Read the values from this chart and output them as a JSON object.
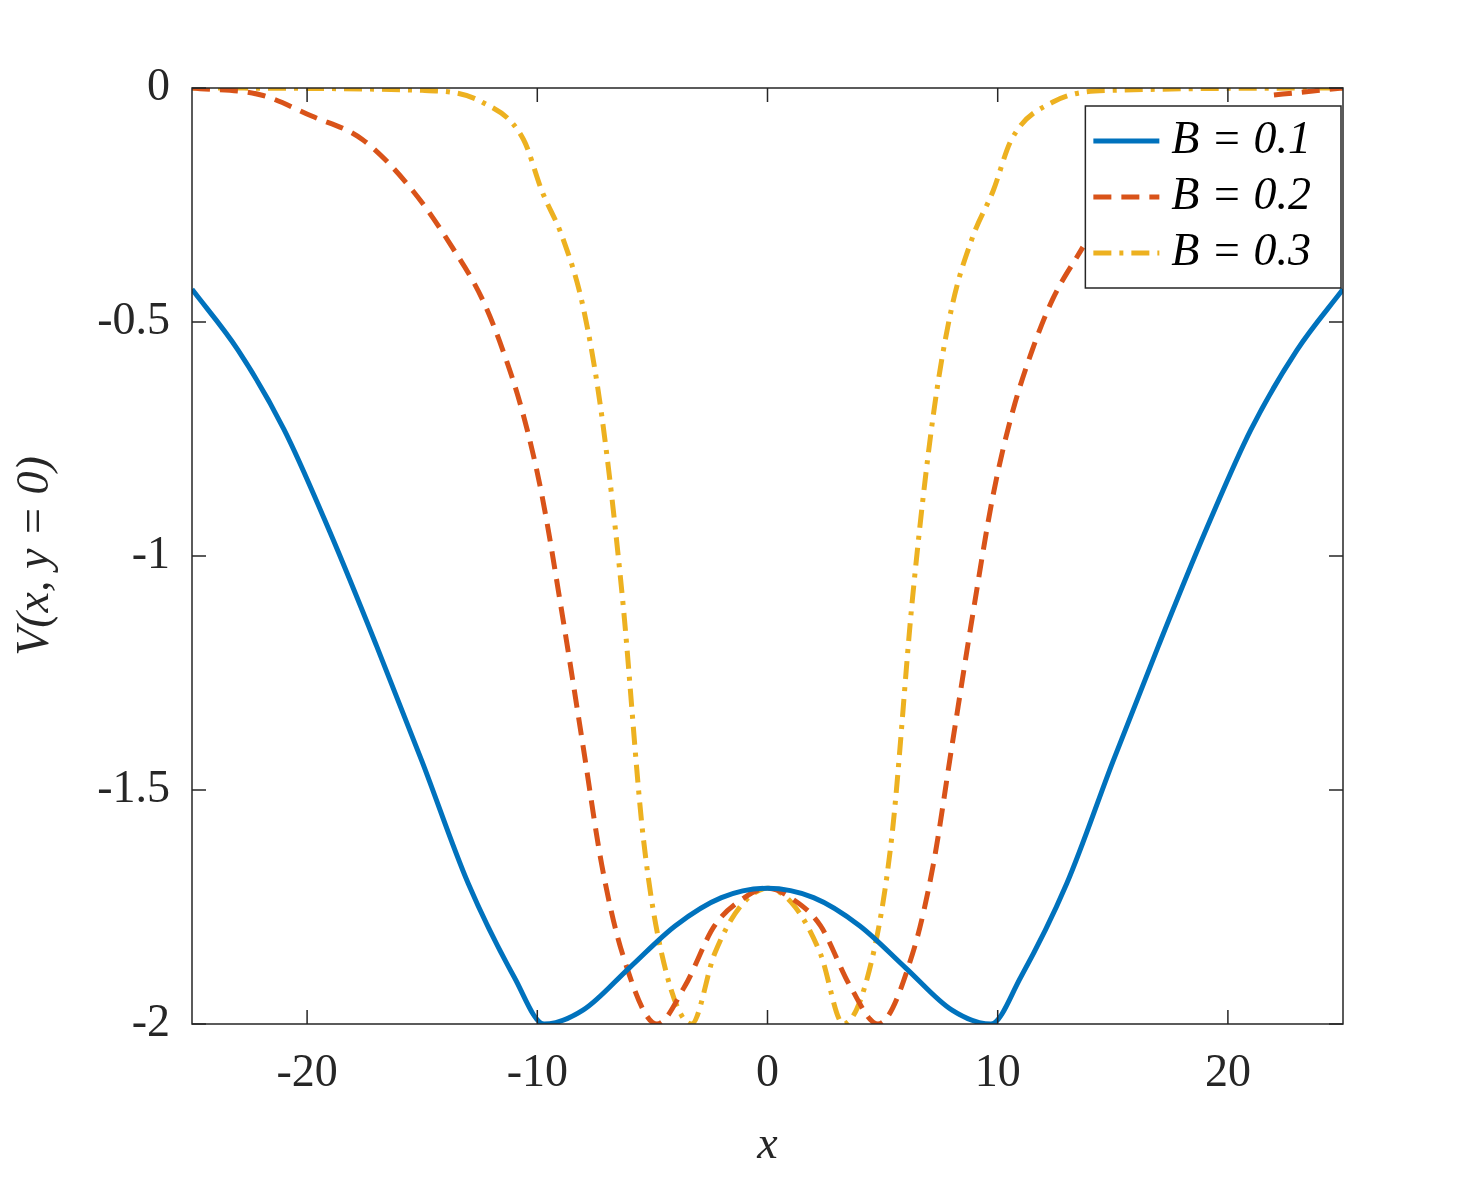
{
  "chart_data": {
    "type": "line",
    "xlabel": "x",
    "ylabel": "V(x, y = 0)",
    "xlim": [
      -25,
      25
    ],
    "xticks": [
      -20,
      -10,
      0,
      10,
      20
    ],
    "ylim": [
      -2,
      0
    ],
    "yticks": [
      -2,
      -1.5,
      -1,
      -0.5,
      0
    ],
    "grid": false,
    "legend": "top right",
    "marker": "none",
    "series": [
      {
        "name": "B = 0.1",
        "color": "#0072bd",
        "line_style": "solid",
        "x": [
          -25,
          -23,
          -21,
          -19,
          -17,
          -15,
          -13,
          -11,
          -9.7,
          -8,
          -6,
          -4,
          -2,
          0,
          2,
          4,
          6,
          8,
          9.7,
          11,
          13,
          15,
          17,
          19,
          21,
          23,
          25
        ],
        "values": [
          -0.43,
          -0.56,
          -0.73,
          -0.95,
          -1.19,
          -1.44,
          -1.7,
          -1.9,
          -2,
          -1.97,
          -1.88,
          -1.79,
          -1.73,
          -1.71,
          -1.73,
          -1.79,
          -1.88,
          -1.97,
          -2,
          -1.9,
          -1.7,
          -1.44,
          -1.19,
          -0.95,
          -0.73,
          -0.56,
          -0.43
        ]
      },
      {
        "name": "B = 0.2",
        "color": "#d95319",
        "line_style": "dashed",
        "x": [
          -25,
          -22,
          -19.8,
          -17.6,
          -15.4,
          -13.7,
          -12.4,
          -11.5,
          -10.6,
          -9.8,
          -8.9,
          -8,
          -7.2,
          -6.3,
          -4.8,
          -3.6,
          -2.3,
          -1,
          0,
          1,
          2.3,
          3.6,
          4.8,
          6.3,
          7.2,
          8,
          8.9,
          9.8,
          10.6,
          11.5,
          12.4,
          13.7,
          15.4,
          17.6,
          19.8,
          22,
          25
        ],
        "values": [
          0,
          -0.015,
          -0.06,
          -0.11,
          -0.22,
          -0.34,
          -0.45,
          -0.56,
          -0.7,
          -0.87,
          -1.13,
          -1.41,
          -1.66,
          -1.85,
          -2,
          -1.92,
          -1.79,
          -1.73,
          -1.71,
          -1.73,
          -1.79,
          -1.92,
          -2,
          -1.85,
          -1.66,
          -1.41,
          -1.13,
          -0.87,
          -0.7,
          -0.56,
          -0.45,
          -0.34,
          null,
          null,
          null,
          -0.015,
          0
        ]
      },
      {
        "name": "B = 0.3",
        "color": "#edb120",
        "line_style": "dashdot",
        "x": [
          -25,
          -15,
          -12.4,
          -10.6,
          -9.8,
          -8.9,
          -8,
          -7.2,
          -6.3,
          -5.4,
          -4.5,
          -3.3,
          -2.3,
          -1.2,
          0,
          1.2,
          2.3,
          3.3,
          4.5,
          5.4,
          6.3,
          7.2,
          8,
          8.9,
          9.8,
          10.6,
          12.4,
          15,
          25
        ],
        "values": [
          0,
          -0.005,
          -0.03,
          -0.11,
          -0.22,
          -0.32,
          -0.47,
          -0.7,
          -1.09,
          -1.6,
          -1.87,
          -2,
          -1.85,
          -1.75,
          -1.71,
          -1.75,
          -1.85,
          -2,
          -1.87,
          -1.6,
          -1.09,
          -0.7,
          -0.47,
          -0.32,
          -0.22,
          -0.11,
          -0.03,
          -0.005,
          0
        ]
      }
    ]
  }
}
